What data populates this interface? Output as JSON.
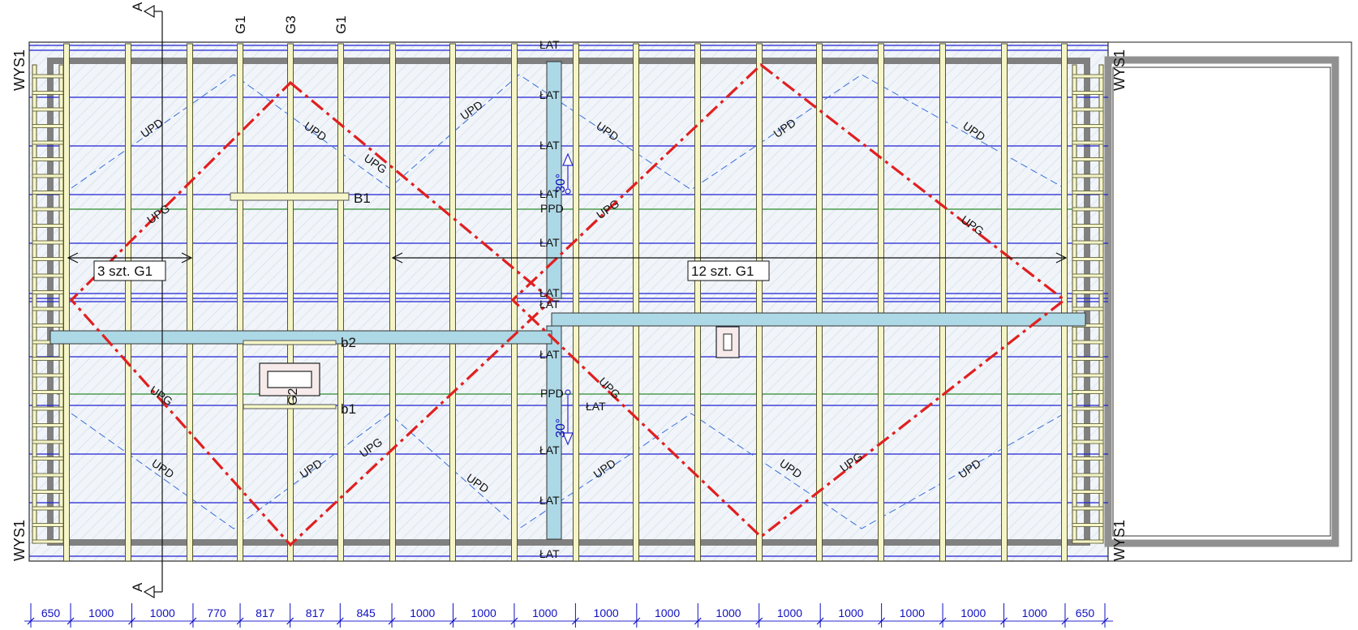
{
  "section_marker": {
    "letter": "A"
  },
  "top_labels": [
    "G1",
    "G3",
    "G1"
  ],
  "corner_labels": {
    "top_left": "WYS1",
    "bottom_left": "WYS1",
    "top_right": "WYS1",
    "bottom_right": "WYS1"
  },
  "beams": {
    "b1": "b1",
    "b2": "b2",
    "B1": "B1",
    "G2": "G2"
  },
  "count_labels": {
    "left": "3 szt. G1",
    "right": "12 szt. G1"
  },
  "slopes": {
    "upper": "30°",
    "lower": "30°"
  },
  "membrane_labels": {
    "upd": "UPD",
    "upg": "UPG",
    "ppd": "PPD",
    "lat": "ŁAT"
  },
  "dimensions": [
    "650",
    "1000",
    "1000",
    "770",
    "817",
    "817",
    "845",
    "1000",
    "1000",
    "1000",
    "1000",
    "1000",
    "1000",
    "1000",
    "1000",
    "1000",
    "1000",
    "1000",
    "650"
  ],
  "colors": {
    "rafter_fill": "#f5f5c8",
    "rafter_stroke": "#555530",
    "batten": "#2020d0",
    "ridge_fill": "#add8e6",
    "hip_line": "#e02020",
    "purlin_green": "#2e8b2e",
    "dim_text": "#1010c0",
    "hatch_bg": "#e8f0f8",
    "frame": "#707070"
  }
}
